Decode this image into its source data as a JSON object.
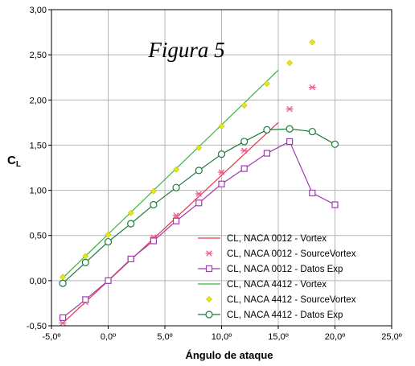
{
  "chart_data": {
    "type": "line",
    "title": "Figura 5",
    "xlabel": "Ángulo de ataque",
    "ylabel": "C",
    "ylabel_sub": "L",
    "xlim": [
      -5,
      25
    ],
    "ylim": [
      -0.5,
      3.0
    ],
    "xticks": [
      -5,
      0,
      5,
      10,
      15,
      20,
      25
    ],
    "xtick_labels": [
      "-5,0º",
      "0,0º",
      "5,0º",
      "10,0º",
      "15,0º",
      "20,0º",
      "25,0º"
    ],
    "yticks": [
      -0.5,
      0,
      0.5,
      1.0,
      1.5,
      2.0,
      2.5,
      3.0
    ],
    "ytick_labels": [
      "-0,50",
      "0,00",
      "0,50",
      "1,00",
      "1,50",
      "2,00",
      "2,50",
      "3,00"
    ],
    "grid": true,
    "legend_position": "bottom-right",
    "series": [
      {
        "name": "CL, NACA 0012 - Vortex",
        "style": "line",
        "marker": "none",
        "color": "#e8334a",
        "x": [
          -4,
          15
        ],
        "y": [
          -0.47,
          1.75
        ]
      },
      {
        "name": "CL, NACA 0012 - SourceVortex",
        "style": "markers",
        "marker": "asterisk",
        "color": "#ee5d8f",
        "x": [
          -4,
          -2,
          0,
          2,
          4,
          6,
          8,
          10,
          12,
          14,
          16,
          18
        ],
        "y": [
          -0.47,
          -0.24,
          0.0,
          0.24,
          0.48,
          0.72,
          0.96,
          1.2,
          1.44,
          1.67,
          1.9,
          2.14
        ]
      },
      {
        "name": "CL, NACA 0012 - Datos Exp",
        "style": "line-markers",
        "marker": "square",
        "color": "#9b3fae",
        "x": [
          -4,
          -2,
          0,
          2,
          4,
          6,
          8,
          10,
          12,
          14,
          16,
          18,
          20
        ],
        "y": [
          -0.41,
          -0.21,
          0.0,
          0.24,
          0.44,
          0.66,
          0.86,
          1.07,
          1.24,
          1.41,
          1.54,
          0.97,
          0.84
        ]
      },
      {
        "name": "CL, NACA 4412 - Vortex",
        "style": "line",
        "marker": "none",
        "color": "#3cb53c",
        "x": [
          -4,
          15
        ],
        "y": [
          0.03,
          2.33
        ]
      },
      {
        "name": "CL, NACA 4412 - SourceVortex",
        "style": "markers",
        "marker": "diamond",
        "color": "#e6e620",
        "x": [
          -4,
          -2,
          0,
          2,
          4,
          6,
          8,
          10,
          12,
          14,
          16,
          18
        ],
        "y": [
          0.04,
          0.27,
          0.51,
          0.75,
          0.99,
          1.23,
          1.47,
          1.71,
          1.94,
          2.18,
          2.41,
          2.64
        ]
      },
      {
        "name": "CL, NACA 4412 - Datos Exp",
        "style": "line-markers",
        "marker": "circle",
        "color": "#1d7a3a",
        "x": [
          -4,
          -2,
          0,
          2,
          4,
          6,
          8,
          10,
          12,
          14,
          16,
          18,
          20
        ],
        "y": [
          -0.03,
          0.2,
          0.43,
          0.63,
          0.84,
          1.03,
          1.22,
          1.4,
          1.54,
          1.67,
          1.68,
          1.65,
          1.51
        ]
      }
    ]
  }
}
